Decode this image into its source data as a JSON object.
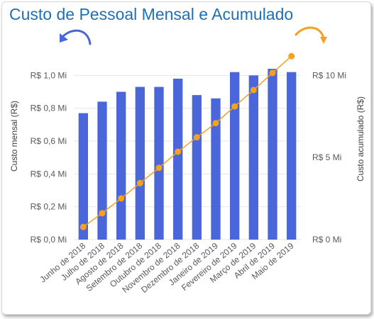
{
  "chart_data": {
    "type": "bar+line",
    "title": "Custo de Pessoal Mensal e Acumulado",
    "categories": [
      "Junho de 2018",
      "Julho de 2018",
      "Agosto de 2018",
      "Setembro de 2018",
      "Outubro de 2018",
      "Novembro de 2018",
      "Dezembro de 2018",
      "Janeiro de 2019",
      "Fevereiro de 2019",
      "Março de 2019",
      "Abril de 2019",
      "Maio de 2019"
    ],
    "series": [
      {
        "axis": "left",
        "type": "bar",
        "color": "#4a66d9",
        "values": [
          0.77,
          0.84,
          0.9,
          0.93,
          0.93,
          0.98,
          0.88,
          0.86,
          1.02,
          1.0,
          1.04,
          1.02
        ]
      },
      {
        "axis": "right",
        "type": "line",
        "color": "#f4a020",
        "values": [
          0.77,
          1.61,
          2.51,
          3.44,
          4.37,
          5.35,
          6.23,
          7.09,
          8.11,
          9.11,
          10.15,
          11.17
        ]
      }
    ],
    "ylabel": "Custo mensal (R$)",
    "y2label": "Custo acumulado (R$)",
    "ylim": [
      0,
      1.2
    ],
    "y2lim": [
      0,
      12
    ],
    "yticks": [
      0,
      0.2,
      0.4,
      0.6,
      0.8,
      1.0
    ],
    "ytick_labels": [
      "R$ 0,0 Mi",
      "R$ 0,2 Mi",
      "R$ 0,4 Mi",
      "R$ 0,6 Mi",
      "R$ 0,8 Mi",
      "R$ 1,0 Mi"
    ],
    "y2ticks": [
      0,
      5,
      10
    ],
    "y2tick_labels": [
      "R$ 0 Mi",
      "R$ 5 Mi",
      "R$ 10 Mi"
    ],
    "grid": true,
    "legend": "none",
    "colors": {
      "title": "#1f6fb5",
      "left_arrow": "#4a66d9",
      "right_arrow": "#f4a020",
      "grid": "#e6e6e6"
    }
  }
}
